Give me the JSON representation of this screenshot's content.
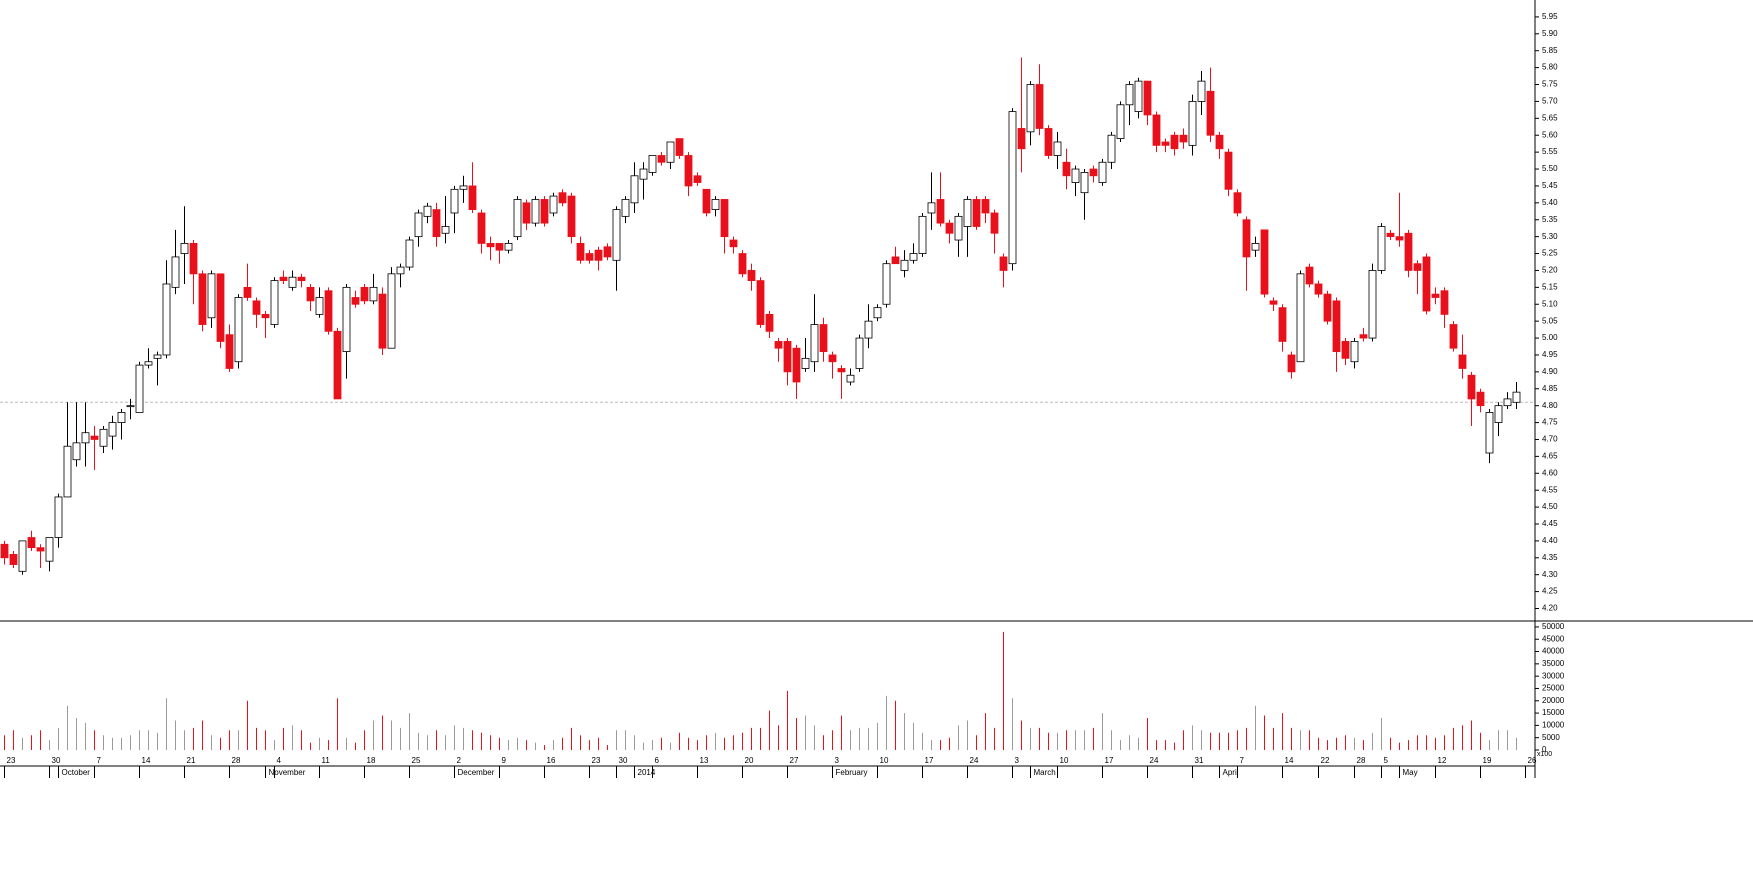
{
  "chart_data": {
    "type": "candlestick",
    "categories": [
      "23",
      null,
      null,
      null,
      null,
      "30",
      null,
      null,
      null,
      null,
      "7",
      null,
      null,
      null,
      null,
      "14",
      null,
      null,
      null,
      null,
      "21",
      null,
      null,
      null,
      null,
      "28",
      null,
      null,
      null,
      null,
      "4",
      null,
      null,
      null,
      null,
      "11",
      null,
      null,
      null,
      null,
      "18",
      null,
      null,
      null,
      null,
      "25",
      null,
      null,
      null,
      null,
      "2",
      null,
      null,
      null,
      null,
      "9",
      null,
      null,
      null,
      null,
      "16",
      null,
      null,
      null,
      null,
      "23",
      null,
      null,
      "30",
      null,
      null,
      null,
      "6",
      null,
      null,
      null,
      null,
      "13",
      null,
      null,
      null,
      null,
      "20",
      null,
      null,
      null,
      null,
      "27",
      null,
      null,
      null,
      null,
      "3",
      null,
      null,
      null,
      null,
      "10",
      null,
      null,
      null,
      null,
      "17",
      null,
      null,
      null,
      null,
      "24",
      null,
      null,
      null,
      null,
      "3",
      null,
      null,
      null,
      null,
      "10",
      null,
      null,
      null,
      null,
      "17",
      null,
      null,
      null,
      null,
      "24",
      null,
      null,
      null,
      null,
      "31",
      null,
      null,
      null,
      null,
      "7",
      null,
      null,
      null,
      null,
      "14",
      null,
      null,
      null,
      "22",
      null,
      null,
      null,
      "28",
      null,
      null,
      "5",
      null,
      null,
      null,
      null,
      null,
      "12",
      null,
      null,
      null,
      null,
      "19",
      null,
      null,
      null,
      null,
      "26"
    ],
    "months": [
      null,
      null,
      null,
      null,
      null,
      null,
      "October",
      null,
      null,
      null,
      null,
      null,
      null,
      null,
      null,
      null,
      null,
      null,
      null,
      null,
      null,
      null,
      null,
      null,
      null,
      null,
      null,
      null,
      null,
      "November",
      null,
      null,
      null,
      null,
      null,
      null,
      null,
      null,
      null,
      null,
      null,
      null,
      null,
      null,
      null,
      null,
      null,
      null,
      null,
      null,
      "December",
      null,
      null,
      null,
      null,
      null,
      null,
      null,
      null,
      null,
      null,
      null,
      null,
      null,
      null,
      null,
      null,
      null,
      null,
      null,
      "2014",
      null,
      null,
      null,
      null,
      null,
      null,
      null,
      null,
      null,
      null,
      null,
      null,
      null,
      null,
      null,
      null,
      null,
      null,
      null,
      null,
      null,
      "February",
      null,
      null,
      null,
      null,
      null,
      null,
      null,
      null,
      null,
      null,
      null,
      null,
      null,
      null,
      null,
      null,
      null,
      null,
      null,
      null,
      null,
      "March",
      null,
      null,
      null,
      null,
      null,
      null,
      null,
      null,
      null,
      null,
      null,
      null,
      null,
      null,
      null,
      null,
      null,
      null,
      null,
      null,
      "April",
      null,
      null,
      null,
      null,
      null,
      null,
      null,
      null,
      null,
      null,
      null,
      null,
      null,
      null,
      null,
      null,
      null,
      null,
      null,
      "May",
      null,
      null,
      null,
      null,
      null,
      null,
      null,
      null,
      null,
      null,
      null,
      null,
      null,
      null,
      null,
      null
    ],
    "open": [
      4.39,
      4.36,
      4.31,
      4.41,
      4.38,
      4.34,
      4.41,
      4.53,
      4.64,
      4.69,
      4.71,
      4.68,
      4.71,
      4.75,
      4.8,
      4.78,
      4.92,
      4.94,
      4.95,
      5.15,
      5.25,
      5.28,
      5.19,
      5.06,
      5.19,
      5.01,
      4.93,
      5.15,
      5.11,
      5.07,
      5.04,
      5.18,
      5.15,
      5.18,
      5.15,
      5.07,
      5.14,
      5.02,
      4.96,
      5.12,
      5.15,
      5.11,
      5.13,
      4.97,
      5.19,
      5.21,
      5.3,
      5.36,
      5.38,
      5.31,
      5.37,
      5.44,
      5.45,
      5.37,
      5.28,
      5.28,
      5.26,
      5.3,
      5.4,
      5.34,
      5.41,
      5.37,
      5.43,
      5.42,
      5.28,
      5.25,
      5.26,
      5.27,
      5.23,
      5.36,
      5.4,
      5.47,
      5.49,
      5.54,
      5.52,
      5.59,
      5.54,
      5.48,
      5.44,
      5.38,
      5.41,
      5.29,
      5.25,
      5.2,
      5.17,
      5.07,
      4.99,
      4.99,
      4.97,
      4.91,
      4.93,
      5.04,
      4.95,
      4.91,
      4.87,
      4.91,
      5.0,
      5.06,
      5.1,
      5.24,
      5.2,
      5.23,
      5.25,
      5.37,
      5.41,
      5.34,
      5.29,
      5.33,
      5.41,
      5.41,
      5.37,
      5.24,
      5.22,
      5.62,
      5.61,
      5.75,
      5.62,
      5.54,
      5.52,
      5.46,
      5.43,
      5.5,
      5.46,
      5.52,
      5.59,
      5.69,
      5.67,
      5.76,
      5.66,
      5.58,
      5.6,
      5.6,
      5.57,
      5.7,
      5.73,
      5.6,
      5.55,
      5.43,
      5.35,
      5.26,
      5.32,
      5.11,
      5.09,
      4.95,
      4.93,
      5.21,
      5.16,
      5.13,
      5.11,
      4.99,
      4.93,
      5.01,
      5.0,
      5.2,
      5.31,
      5.3,
      5.31,
      5.22,
      5.24,
      5.13,
      5.14,
      5.04,
      4.95,
      4.89,
      4.84,
      4.66,
      4.75,
      4.8,
      4.81,
      null
    ],
    "high": [
      4.4,
      4.37,
      4.4,
      4.43,
      4.39,
      4.41,
      4.54,
      4.81,
      4.81,
      4.81,
      4.74,
      4.74,
      4.77,
      4.79,
      4.82,
      4.93,
      4.97,
      4.96,
      5.23,
      5.32,
      5.39,
      5.29,
      5.2,
      5.2,
      5.19,
      5.04,
      5.13,
      5.22,
      5.12,
      5.08,
      5.18,
      5.2,
      5.2,
      5.19,
      5.16,
      5.15,
      5.15,
      5.03,
      5.16,
      5.14,
      5.16,
      5.19,
      5.15,
      5.21,
      5.22,
      5.3,
      5.38,
      5.4,
      5.4,
      5.42,
      5.45,
      5.48,
      5.52,
      5.38,
      5.3,
      5.28,
      5.29,
      5.42,
      5.41,
      5.42,
      5.42,
      5.43,
      5.44,
      5.43,
      5.3,
      5.26,
      5.27,
      5.28,
      5.39,
      5.42,
      5.52,
      5.52,
      5.54,
      5.55,
      5.58,
      5.59,
      5.55,
      5.49,
      5.44,
      5.42,
      5.41,
      5.3,
      5.26,
      5.22,
      5.18,
      5.08,
      5.0,
      5.0,
      4.98,
      5.0,
      5.13,
      5.06,
      4.96,
      4.92,
      4.91,
      5.01,
      5.1,
      5.1,
      5.23,
      5.27,
      5.26,
      5.28,
      5.37,
      5.49,
      5.49,
      5.35,
      5.37,
      5.42,
      5.42,
      5.42,
      5.38,
      5.25,
      5.68,
      5.83,
      5.76,
      5.81,
      5.63,
      5.61,
      5.56,
      5.51,
      5.5,
      5.51,
      5.53,
      5.61,
      5.7,
      5.76,
      5.77,
      5.76,
      5.67,
      5.59,
      5.61,
      5.62,
      5.72,
      5.79,
      5.8,
      5.61,
      5.56,
      5.44,
      5.36,
      5.3,
      5.32,
      5.12,
      5.1,
      4.96,
      5.2,
      5.22,
      5.17,
      5.14,
      5.12,
      5.0,
      5.0,
      5.03,
      5.22,
      5.34,
      5.32,
      5.43,
      5.32,
      5.23,
      5.25,
      5.15,
      5.15,
      5.05,
      5.01,
      4.9,
      4.85,
      4.79,
      4.81,
      4.84,
      4.87,
      null
    ],
    "low": [
      4.33,
      4.32,
      4.3,
      4.37,
      4.32,
      4.31,
      4.38,
      4.53,
      4.62,
      4.62,
      4.61,
      4.66,
      4.67,
      4.7,
      4.76,
      4.78,
      4.91,
      4.86,
      4.94,
      5.13,
      5.16,
      5.1,
      5.02,
      5.03,
      4.97,
      4.9,
      4.91,
      5.11,
      5.03,
      5.0,
      5.03,
      5.16,
      5.14,
      5.15,
      5.08,
      5.06,
      5.01,
      4.82,
      4.88,
      5.09,
      5.1,
      5.1,
      4.95,
      4.97,
      5.15,
      5.2,
      5.27,
      5.34,
      5.27,
      5.28,
      5.31,
      5.4,
      5.37,
      5.25,
      5.23,
      5.22,
      5.25,
      5.29,
      5.32,
      5.33,
      5.33,
      5.36,
      5.39,
      5.28,
      5.22,
      5.22,
      5.2,
      5.23,
      5.14,
      5.34,
      5.37,
      5.41,
      5.48,
      5.51,
      5.5,
      5.53,
      5.42,
      5.45,
      5.36,
      5.36,
      5.25,
      5.25,
      5.18,
      5.14,
      5.03,
      5.0,
      4.93,
      4.86,
      4.82,
      4.9,
      4.9,
      4.93,
      4.88,
      4.82,
      4.86,
      4.9,
      4.97,
      5.05,
      5.09,
      5.22,
      5.18,
      5.22,
      5.24,
      5.32,
      5.33,
      5.28,
      5.24,
      5.24,
      5.32,
      5.34,
      5.25,
      5.15,
      5.2,
      5.49,
      5.57,
      5.6,
      5.53,
      5.5,
      5.44,
      5.42,
      5.35,
      5.46,
      5.45,
      5.5,
      5.58,
      5.63,
      5.65,
      5.63,
      5.55,
      5.55,
      5.54,
      5.56,
      5.54,
      5.66,
      5.58,
      5.53,
      5.42,
      5.36,
      5.14,
      5.24,
      5.12,
      5.08,
      4.96,
      4.88,
      4.93,
      5.15,
      5.12,
      5.04,
      4.9,
      4.92,
      4.91,
      4.99,
      4.99,
      5.19,
      5.29,
      5.27,
      5.18,
      5.13,
      5.07,
      5.1,
      5.03,
      4.96,
      4.88,
      4.74,
      4.78,
      4.63,
      4.71,
      4.79,
      4.79,
      null
    ],
    "close": [
      4.35,
      4.33,
      4.4,
      4.38,
      4.37,
      4.41,
      4.53,
      4.68,
      4.69,
      4.72,
      4.7,
      4.73,
      4.75,
      4.78,
      4.8,
      4.92,
      4.93,
      4.95,
      5.16,
      5.24,
      5.28,
      5.19,
      5.04,
      5.19,
      4.99,
      4.91,
      5.12,
      5.12,
      5.07,
      5.06,
      5.17,
      5.17,
      5.18,
      5.17,
      5.11,
      5.12,
      5.02,
      4.82,
      5.15,
      5.1,
      5.11,
      5.15,
      4.97,
      5.19,
      5.21,
      5.29,
      5.37,
      5.39,
      5.3,
      5.33,
      5.44,
      5.45,
      5.38,
      5.28,
      5.27,
      5.26,
      5.28,
      5.41,
      5.34,
      5.41,
      5.34,
      5.42,
      5.4,
      5.3,
      5.23,
      5.23,
      5.23,
      5.24,
      5.38,
      5.41,
      5.48,
      5.5,
      5.54,
      5.52,
      5.58,
      5.54,
      5.45,
      5.46,
      5.37,
      5.41,
      5.3,
      5.27,
      5.19,
      5.17,
      5.04,
      5.02,
      4.97,
      4.9,
      4.87,
      4.94,
      5.04,
      4.96,
      4.93,
      4.9,
      4.89,
      5.0,
      5.05,
      5.09,
      5.22,
      5.22,
      5.23,
      5.25,
      5.36,
      5.4,
      5.34,
      5.31,
      5.36,
      5.41,
      5.33,
      5.37,
      5.31,
      5.2,
      5.67,
      5.56,
      5.75,
      5.62,
      5.54,
      5.58,
      5.48,
      5.5,
      5.49,
      5.48,
      5.52,
      5.6,
      5.69,
      5.75,
      5.76,
      5.66,
      5.57,
      5.57,
      5.56,
      5.58,
      5.7,
      5.76,
      5.6,
      5.56,
      5.44,
      5.37,
      5.24,
      5.28,
      5.13,
      5.1,
      4.99,
      4.9,
      5.19,
      5.16,
      5.13,
      5.05,
      4.96,
      4.94,
      4.99,
      5.0,
      5.2,
      5.33,
      5.3,
      5.29,
      5.2,
      5.2,
      5.08,
      5.12,
      5.07,
      4.97,
      4.91,
      4.82,
      4.8,
      4.78,
      4.8,
      4.82,
      4.84,
      null
    ],
    "volume": [
      6000,
      8000,
      5000,
      6000,
      8000,
      4000,
      9000,
      18000,
      13000,
      11000,
      8000,
      6000,
      5000,
      5000,
      6000,
      8000,
      8000,
      7000,
      21000,
      12000,
      8000,
      9000,
      12000,
      6000,
      5000,
      8000,
      8000,
      20000,
      9000,
      8000,
      4000,
      9000,
      10000,
      8000,
      3000,
      5000,
      4000,
      21000,
      5000,
      3000,
      8000,
      12000,
      14000,
      12000,
      9000,
      15000,
      7000,
      6000,
      8000,
      6000,
      10000,
      9000,
      8000,
      7000,
      6000,
      5000,
      4000,
      5000,
      4000,
      3000,
      2000,
      4000,
      5000,
      9000,
      6000,
      4000,
      5000,
      2000,
      8000,
      8000,
      6000,
      3000,
      4000,
      5000,
      3000,
      7000,
      5000,
      4000,
      6000,
      7000,
      5000,
      6000,
      7000,
      9000,
      9000,
      16000,
      10000,
      24000,
      13000,
      14000,
      10000,
      6000,
      8000,
      14000,
      8000,
      9000,
      9000,
      11000,
      22000,
      20000,
      15000,
      11000,
      7000,
      4000,
      4000,
      5000,
      10000,
      12000,
      6000,
      15000,
      9000,
      48000,
      21000,
      12000,
      9000,
      9000,
      7000,
      7000,
      8000,
      8000,
      8000,
      9000,
      15000,
      8000,
      4000,
      6000,
      5000,
      13000,
      4000,
      4000,
      3000,
      8000,
      10000,
      8000,
      7000,
      7000,
      7000,
      8000,
      9000,
      18000,
      14000,
      9000,
      15000,
      9000,
      8000,
      8000,
      5000,
      4000,
      5000,
      6000,
      5000,
      4000,
      7000,
      13000,
      5000,
      3000,
      4000,
      6000,
      6000,
      5000,
      6000,
      9000,
      10000,
      12000,
      7000,
      4000,
      8000,
      8000,
      5000,
      null
    ],
    "ylim": [
      4.166,
      6.0
    ],
    "yticks": [
      {
        "value": 4.2,
        "label": "4.20"
      },
      4.25,
      {
        "value": 4.3,
        "label": "4.30"
      },
      4.35,
      {
        "value": 4.4,
        "label": "4.40"
      },
      4.45,
      {
        "value": 4.5,
        "label": "4.50"
      },
      4.55,
      {
        "value": 4.6,
        "label": "4.60"
      },
      4.65,
      {
        "value": 4.7,
        "label": "4.70"
      },
      4.75,
      {
        "value": 4.8,
        "label": "4.80"
      },
      4.85,
      {
        "value": 4.9,
        "label": "4.90"
      },
      4.95,
      {
        "value": 5,
        "label": "5.00"
      },
      5.05,
      {
        "value": 5.1,
        "label": "5.10"
      },
      5.15,
      {
        "value": 5.2,
        "label": "5.20"
      },
      5.25,
      {
        "value": 5.3,
        "label": "5.30"
      },
      5.35,
      {
        "value": 5.4,
        "label": "5.40"
      },
      5.45,
      {
        "value": 5.5,
        "label": "5.50"
      },
      5.55,
      {
        "value": 5.6,
        "label": "5.60"
      },
      5.65,
      {
        "value": 5.7,
        "label": "5.70"
      },
      5.75,
      {
        "value": 5.8,
        "label": "5.80"
      },
      5.85,
      {
        "value": 5.9,
        "label": "5.90"
      },
      5.95
    ],
    "volume_ylim": [
      0,
      52000
    ],
    "volume_yticks": [
      0,
      5000,
      10000,
      15000,
      20000,
      25000,
      30000,
      35000,
      40000,
      45000,
      50000
    ],
    "volume_unit_label": "x100",
    "reference_line": 4.81,
    "up_color": "#ffffff",
    "down_color": "#e8101a",
    "volume_up_color": "#9a9a9a"
  }
}
